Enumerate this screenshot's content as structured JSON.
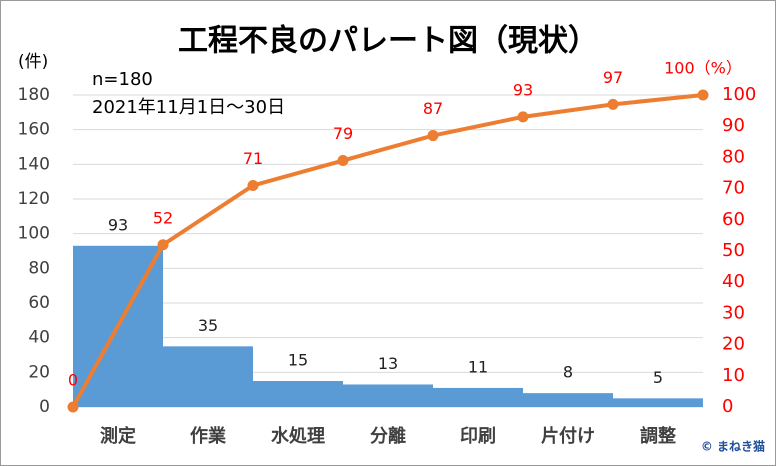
{
  "chart_data": {
    "type": "pareto",
    "title": "工程不良のパレート図（現状）",
    "y_label": "(件)",
    "annotations": [
      "n=180",
      "2021年11月1日～30日"
    ],
    "watermark": "© まねき猫",
    "categories": [
      "測定",
      "作業",
      "水処理",
      "分離",
      "印刷",
      "片付け",
      "調整"
    ],
    "series": [
      {
        "type": "bar",
        "color": "#5b9bd5",
        "values": [
          93,
          35,
          15,
          13,
          11,
          8,
          5
        ]
      },
      {
        "type": "line",
        "axis": "y2",
        "color": "#ed7d31",
        "x": [
          0,
          1,
          2,
          3,
          4,
          5,
          6,
          7
        ],
        "values": [
          0,
          52,
          71,
          79,
          87,
          93,
          97,
          100
        ],
        "value_labels": [
          "0",
          "52",
          "71",
          "79",
          "87",
          "93",
          "97",
          "100（%）"
        ]
      }
    ],
    "ylim": [
      0,
      180
    ],
    "yticks": [
      0,
      20,
      40,
      60,
      80,
      100,
      120,
      140,
      160,
      180
    ],
    "y2lim": [
      0,
      100
    ],
    "y2ticks": [
      0,
      10,
      20,
      30,
      40,
      50,
      60,
      70,
      80,
      90,
      100
    ],
    "y2_color": "#ff0000",
    "grid": true
  }
}
